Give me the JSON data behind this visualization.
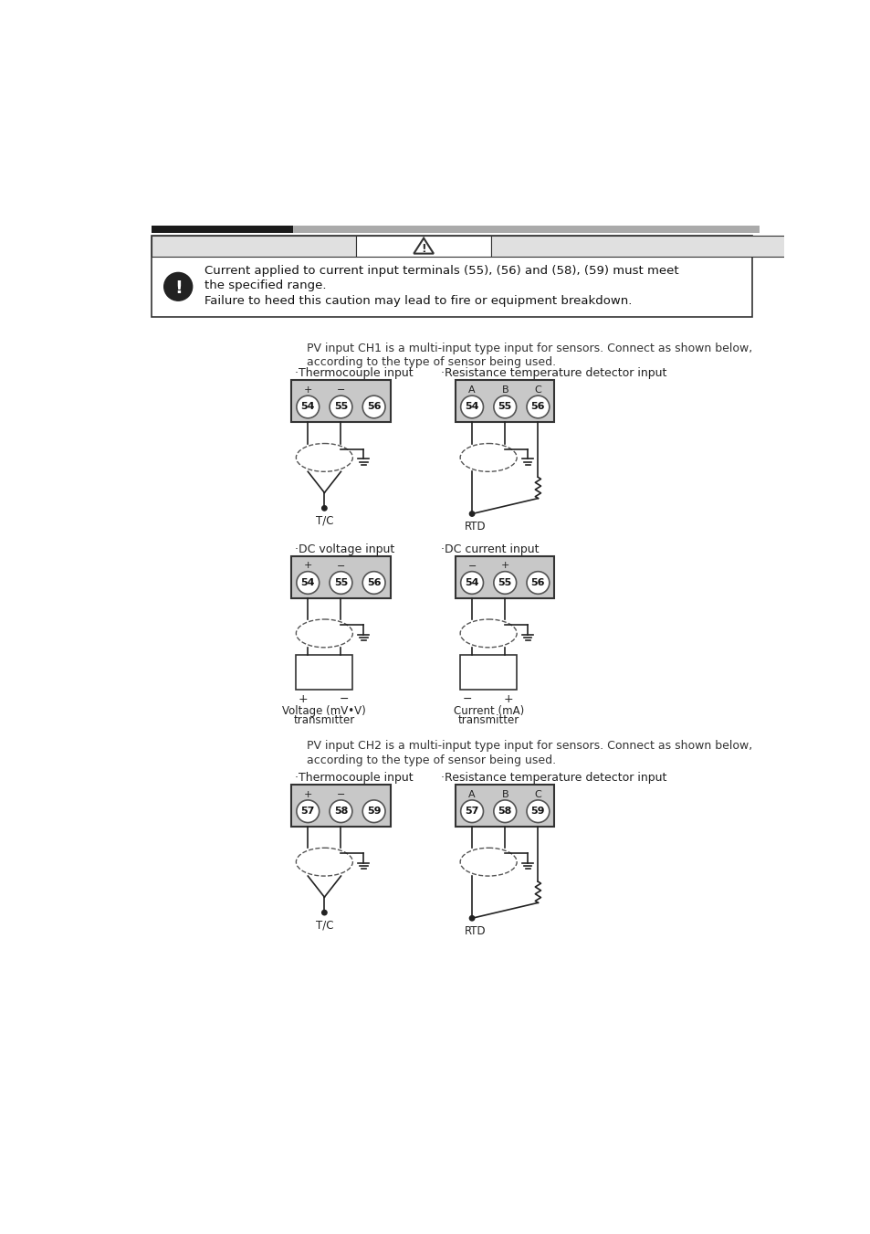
{
  "bg_color": "#ffffff",
  "header_bar_black": "#1a1a1a",
  "header_bar_gray": "#aaaaaa",
  "caution_box_bg": "#ffffff",
  "caution_box_border": "#333333",
  "terminal_box_bg": "#c8c8c8",
  "terminal_box_border": "#333333",
  "caution_text_line1": "Current applied to current input terminals (55), (56) and (58), (59) must meet",
  "caution_text_line2": "the specified range.",
  "caution_text_line3": "Failure to heed this caution may lead to fire or equipment breakdown.",
  "ch1_intro_line1": "PV input CH1 is a multi-input type input for sensors. Connect as shown below,",
  "ch1_intro_line2": "according to the type of sensor being used.",
  "ch2_intro_line1": "PV input CH2 is a multi-input type input for sensors. Connect as shown below,",
  "ch2_intro_line2": "according to the type of sensor being used.",
  "diagram_label_color": "#222222",
  "dashed_color": "#555555"
}
